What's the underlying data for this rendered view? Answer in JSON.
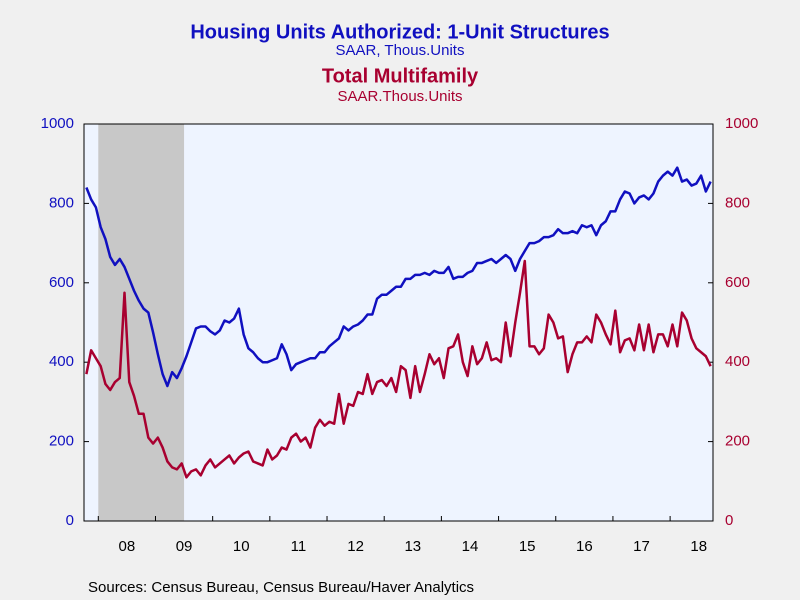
{
  "chart_data": {
    "type": "line",
    "source": "Sources:  Census Bureau, Census Bureau/Haver Analytics",
    "categories": [
      null,
      null,
      null,
      null,
      null,
      null,
      null,
      null,
      null,
      "08",
      null,
      null,
      null,
      null,
      null,
      null,
      null,
      null,
      null,
      null,
      null,
      "09",
      null,
      null,
      null,
      null,
      null,
      null,
      null,
      null,
      null,
      null,
      null,
      "10",
      null,
      null,
      null,
      null,
      null,
      null,
      null,
      null,
      null,
      null,
      null,
      "11",
      null,
      null,
      null,
      null,
      null,
      null,
      null,
      null,
      null,
      null,
      null,
      "12",
      null,
      null,
      null,
      null,
      null,
      null,
      null,
      null,
      null,
      null,
      null,
      "13",
      null,
      null,
      null,
      null,
      null,
      null,
      null,
      null,
      null,
      null,
      null,
      "14",
      null,
      null,
      null,
      null,
      null,
      null,
      null,
      null,
      null,
      null,
      null,
      "15",
      null,
      null,
      null,
      null,
      null,
      null,
      null,
      null,
      null,
      null,
      null,
      "16",
      null,
      null,
      null,
      null,
      null,
      null,
      null,
      null,
      null,
      null,
      null,
      "17",
      null,
      null,
      null,
      null,
      null,
      null,
      null,
      null,
      null,
      null,
      null,
      "18",
      null,
      null
    ],
    "series": [
      {
        "name": "Housing Units Authorized: 1-Unit Structures",
        "units": "SAAR, Thous.Units",
        "color": "#1010c0",
        "axis": "y",
        "values": [
          840,
          810,
          790,
          740,
          710,
          665,
          645,
          660,
          640,
          610,
          580,
          555,
          535,
          525,
          475,
          420,
          370,
          340,
          375,
          360,
          385,
          415,
          450,
          485,
          490,
          490,
          478,
          470,
          480,
          505,
          500,
          510,
          535,
          470,
          435,
          425,
          410,
          400,
          400,
          405,
          410,
          445,
          420,
          380,
          395,
          400,
          405,
          410,
          410,
          425,
          425,
          440,
          450,
          460,
          490,
          480,
          490,
          495,
          505,
          520,
          520,
          560,
          570,
          570,
          580,
          590,
          590,
          610,
          610,
          620,
          620,
          625,
          620,
          630,
          625,
          625,
          640,
          610,
          615,
          615,
          625,
          630,
          650,
          650,
          655,
          660,
          650,
          660,
          670,
          660,
          630,
          660,
          680,
          700,
          700,
          705,
          715,
          715,
          720,
          735,
          725,
          725,
          730,
          725,
          745,
          740,
          745,
          720,
          745,
          755,
          780,
          780,
          810,
          830,
          825,
          800,
          815,
          820,
          810,
          825,
          855,
          870,
          880,
          870,
          890,
          855,
          860,
          845,
          850,
          870,
          830,
          855
        ]
      },
      {
        "name": "Total Multifamily",
        "units": "SAAR.Thous.Units",
        "color": "#a80030",
        "axis": "y2",
        "values": [
          370,
          430,
          410,
          390,
          345,
          330,
          350,
          360,
          575,
          350,
          315,
          270,
          270,
          210,
          195,
          210,
          185,
          150,
          135,
          130,
          145,
          110,
          125,
          130,
          115,
          140,
          155,
          135,
          145,
          155,
          165,
          145,
          160,
          170,
          175,
          150,
          145,
          140,
          180,
          155,
          165,
          185,
          180,
          210,
          220,
          200,
          210,
          185,
          235,
          255,
          240,
          250,
          245,
          320,
          245,
          295,
          290,
          325,
          320,
          370,
          320,
          350,
          355,
          340,
          360,
          325,
          390,
          380,
          310,
          390,
          325,
          370,
          420,
          395,
          410,
          360,
          435,
          440,
          470,
          400,
          365,
          440,
          395,
          410,
          450,
          405,
          410,
          400,
          500,
          415,
          500,
          575,
          655,
          440,
          440,
          420,
          435,
          520,
          500,
          460,
          465,
          375,
          420,
          450,
          450,
          465,
          450,
          520,
          500,
          470,
          445,
          530,
          425,
          455,
          460,
          430,
          495,
          430,
          495,
          425,
          470,
          470,
          440,
          495,
          440,
          525,
          505,
          460,
          435,
          425,
          415,
          390
        ]
      }
    ],
    "ylim": [
      0,
      1000
    ],
    "yticks": [
      0,
      200,
      400,
      600,
      800,
      1000
    ],
    "y2lim": [
      0,
      1000
    ],
    "y2ticks": [
      0,
      200,
      400,
      600,
      800,
      1000
    ],
    "grid": false
  }
}
